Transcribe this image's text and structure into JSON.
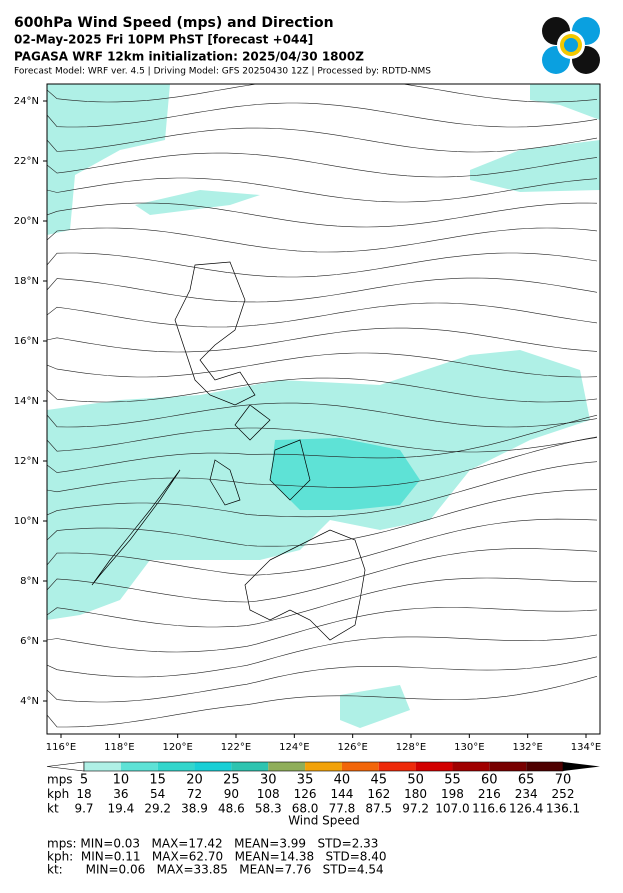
{
  "header": {
    "title": "600hPa Wind Speed (mps) and Direction",
    "subtitle": "02-May-2025 Fri 10PM PhST [forecast +044]",
    "initialization": "PAGASA WRF 12km initialization: 2025/04/30 1800Z",
    "note": "Forecast Model: WRF ver. 4.5 | Driving Model: GFS 20250430 12Z | Processed by: RDTD-NMS"
  },
  "map": {
    "lat_ticks": [
      {
        "value": 24,
        "label": "24°N"
      },
      {
        "value": 22,
        "label": "22°N"
      },
      {
        "value": 20,
        "label": "20°N"
      },
      {
        "value": 18,
        "label": "18°N"
      },
      {
        "value": 16,
        "label": "16°N"
      },
      {
        "value": 14,
        "label": "14°N"
      },
      {
        "value": 12,
        "label": "12°N"
      },
      {
        "value": 10,
        "label": "10°N"
      },
      {
        "value": 8,
        "label": "8°N"
      },
      {
        "value": 6,
        "label": "6°N"
      },
      {
        "value": 4,
        "label": "4°N"
      }
    ],
    "lon_ticks": [
      {
        "value": 116,
        "label": "116°E"
      },
      {
        "value": 118,
        "label": "118°E"
      },
      {
        "value": 120,
        "label": "120°E"
      },
      {
        "value": 122,
        "label": "122°E"
      },
      {
        "value": 124,
        "label": "124°E"
      },
      {
        "value": 126,
        "label": "126°E"
      },
      {
        "value": 128,
        "label": "128°E"
      },
      {
        "value": 130,
        "label": "130°E"
      },
      {
        "value": 132,
        "label": "132°E"
      },
      {
        "value": 134,
        "label": "134°E"
      }
    ]
  },
  "colorbar": {
    "title": "Wind Speed",
    "colors": [
      "#aff0e6",
      "#5ee2d6",
      "#33d6cc",
      "#19cfd6",
      "#2ec4b0",
      "#8fae5a",
      "#f2a20a",
      "#f2660a",
      "#ee2a0a",
      "#d20000",
      "#a00000",
      "#780000",
      "#4e0000"
    ],
    "rows": [
      {
        "unit": "mps",
        "labels": [
          "5",
          "10",
          "15",
          "20",
          "25",
          "30",
          "35",
          "40",
          "45",
          "50",
          "55",
          "60",
          "65",
          "70"
        ]
      },
      {
        "unit": "kph",
        "labels": [
          "18",
          "36",
          "54",
          "72",
          "90",
          "108",
          "126",
          "144",
          "162",
          "180",
          "198",
          "216",
          "234",
          "252"
        ]
      },
      {
        "unit": "kt",
        "labels": [
          "9.7",
          "19.4",
          "29.2",
          "38.9",
          "48.6",
          "58.3",
          "68.0",
          "77.8",
          "87.5",
          "97.2",
          "107.0",
          "116.6",
          "126.4",
          "136.1"
        ]
      }
    ]
  },
  "stats": [
    "mps: MIN=0.03   MAX=17.42   MEAN=3.99   STD=2.33",
    "kph:  MIN=0.11   MAX=62.70   MEAN=14.38   STD=8.40",
    "kt:      MIN=0.06   MAX=33.85   MEAN=7.76   STD=4.54"
  ]
}
